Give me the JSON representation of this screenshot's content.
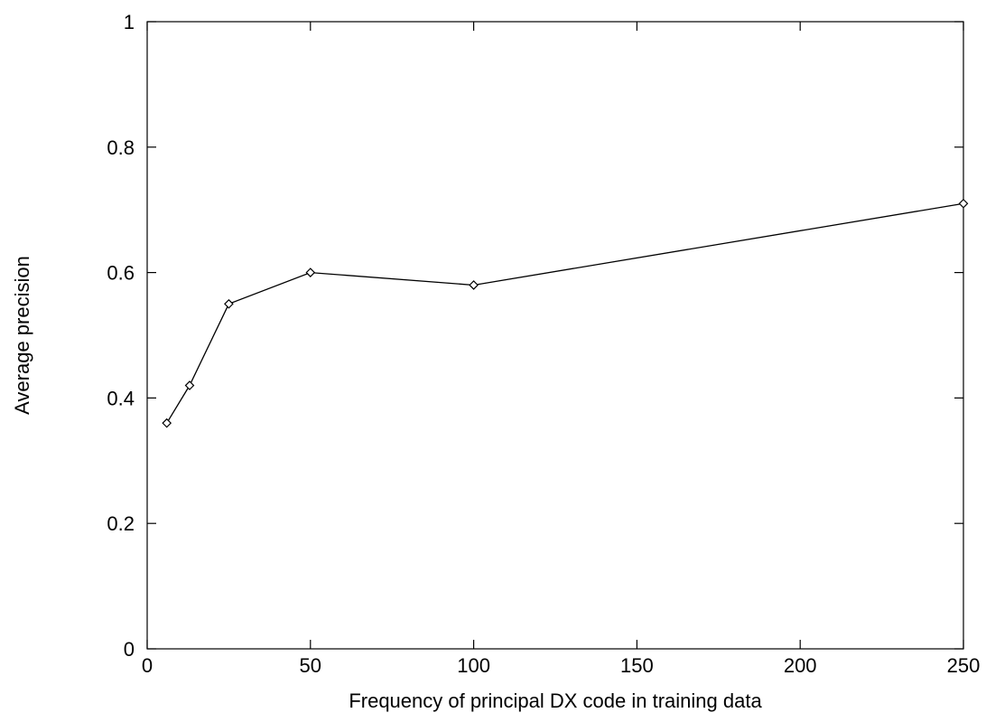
{
  "chart_data": {
    "type": "line",
    "title": "",
    "xlabel": "Frequency of principal DX code in training data",
    "ylabel": "Average precision",
    "xlim": [
      0,
      250
    ],
    "ylim": [
      0,
      1
    ],
    "x_ticks": [
      0,
      50,
      100,
      150,
      200,
      250
    ],
    "y_ticks": [
      0,
      0.2,
      0.4,
      0.6,
      0.8,
      1
    ],
    "x_tick_labels": [
      "0",
      "50",
      "100",
      "150",
      "200",
      "250"
    ],
    "y_tick_labels": [
      "0",
      "0.2",
      "0.4",
      "0.6",
      "0.8",
      "1"
    ],
    "grid": false,
    "legend": "none",
    "marker": "diamond",
    "line_color": "#000000",
    "series": [
      {
        "x": [
          6,
          13,
          25,
          50,
          100,
          250
        ],
        "y": [
          0.36,
          0.42,
          0.55,
          0.6,
          0.58,
          0.71
        ]
      }
    ]
  }
}
